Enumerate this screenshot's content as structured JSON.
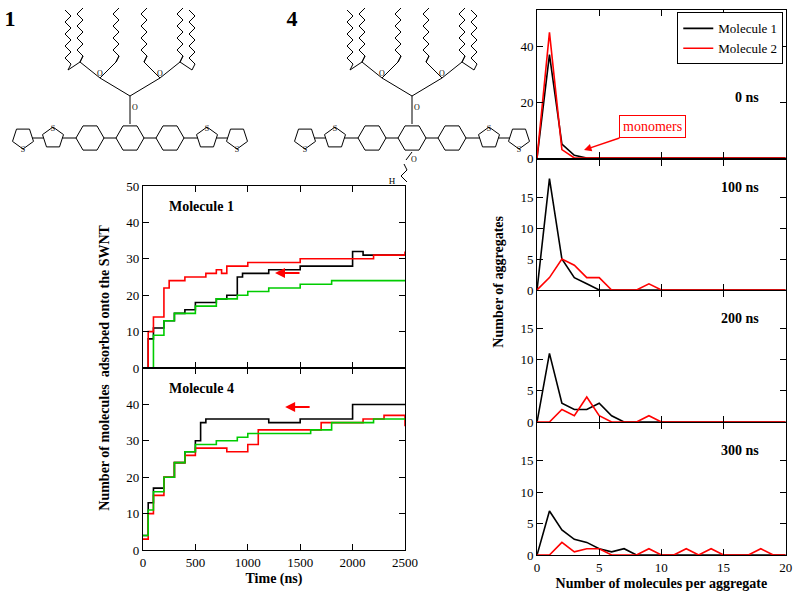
{
  "structures": [
    {
      "label": "1",
      "atoms": [
        "S",
        "O"
      ]
    },
    {
      "label": "4",
      "atoms": [
        "S",
        "O"
      ],
      "end_group": "H"
    }
  ],
  "chart_data": [
    {
      "type": "line",
      "title": "Molecule 1",
      "ylabel": "Number of molecules  adsorbed onto the SWNT",
      "xlim": [
        0,
        2500
      ],
      "xticks": [
        0,
        500,
        1000,
        1500,
        2000,
        2500
      ],
      "ylim": [
        0,
        50
      ],
      "yticks": [
        0,
        10,
        20,
        30,
        40,
        50
      ],
      "tick_labels": "y",
      "line_style": "step",
      "series": [
        {
          "color": "#000000",
          "x": [
            0,
            50,
            100,
            200,
            300,
            400,
            500,
            700,
            800,
            900,
            950,
            1200,
            1500,
            2000,
            2100,
            2500
          ],
          "values": [
            0,
            8,
            11,
            13,
            15,
            16,
            18,
            19,
            20,
            25,
            26,
            27,
            28,
            32,
            31,
            31
          ]
        },
        {
          "color": "#ff0000",
          "x": [
            0,
            50,
            100,
            200,
            250,
            400,
            600,
            700,
            750,
            800,
            1000,
            1500,
            2200,
            2500
          ],
          "values": [
            0,
            10,
            14,
            22,
            24,
            25,
            26,
            27,
            26,
            28,
            29,
            30,
            31,
            32
          ]
        },
        {
          "color": "#00cc00",
          "x": [
            0,
            100,
            200,
            300,
            500,
            700,
            900,
            1000,
            1200,
            1500,
            1800,
            2500
          ],
          "values": [
            0,
            9,
            13,
            15,
            17,
            19,
            20,
            21,
            22,
            23,
            24,
            24
          ]
        }
      ]
    },
    {
      "type": "line",
      "title": "Molecule 4",
      "xlabel": "Time (ns)",
      "xlim": [
        0,
        2500
      ],
      "xticks": [
        0,
        500,
        1000,
        1500,
        2000,
        2500
      ],
      "ylim": [
        0,
        50
      ],
      "yticks": [
        0,
        10,
        20,
        30,
        40
      ],
      "line_style": "step",
      "series": [
        {
          "color": "#000000",
          "x": [
            0,
            50,
            100,
            200,
            300,
            400,
            500,
            550,
            600,
            1200,
            1500,
            2000,
            2500
          ],
          "values": [
            4,
            13,
            17,
            20,
            24,
            27,
            30,
            35,
            36,
            35,
            36,
            40,
            40
          ]
        },
        {
          "color": "#ff0000",
          "x": [
            0,
            50,
            100,
            200,
            300,
            400,
            500,
            800,
            1000,
            1100,
            1700,
            2100,
            2300,
            2500
          ],
          "values": [
            3,
            10,
            15,
            20,
            24,
            26,
            28,
            27,
            29,
            33,
            35,
            36,
            37,
            34
          ]
        },
        {
          "color": "#00cc00",
          "x": [
            0,
            50,
            100,
            200,
            300,
            400,
            500,
            700,
            900,
            1000,
            1600,
            1800,
            2200,
            2500
          ],
          "values": [
            4,
            11,
            16,
            20,
            24,
            27,
            29,
            30,
            31,
            32,
            33,
            35,
            36,
            36
          ]
        }
      ]
    },
    {
      "type": "line",
      "title": "0 ns",
      "ylabel": "Number of aggregates",
      "annotations": [
        {
          "text": "monomers"
        }
      ],
      "legend": "upper right",
      "tick_labels": "y",
      "xlim": [
        0,
        20
      ],
      "xticks": [
        0,
        5,
        10,
        15,
        20
      ],
      "ylim": [
        0,
        53
      ],
      "yticks": [
        0,
        20,
        40
      ],
      "x": [
        0,
        1,
        2,
        3,
        4,
        5,
        6,
        7,
        8,
        9,
        10,
        11,
        12,
        13,
        14,
        15,
        16,
        17,
        18,
        19,
        20
      ],
      "series": [
        {
          "name": "Molecule 1",
          "color": "#000000",
          "values": [
            0,
            37,
            5,
            1,
            0,
            0,
            0,
            0,
            0,
            0,
            0,
            0,
            0,
            0,
            0,
            0,
            0,
            0,
            0,
            0,
            0
          ]
        },
        {
          "name": "Molecule 2",
          "color": "#ff0000",
          "values": [
            0,
            45,
            3,
            0,
            0,
            0,
            0,
            0,
            0,
            0,
            0,
            0,
            0,
            0,
            0,
            0,
            0,
            0,
            0,
            0,
            0
          ]
        }
      ]
    },
    {
      "type": "line",
      "title": "100 ns",
      "tick_labels": "y",
      "xlim": [
        0,
        20
      ],
      "xticks": [
        0,
        5,
        10,
        15,
        20
      ],
      "ylim": [
        0,
        21
      ],
      "yticks": [
        0,
        5,
        10,
        15
      ],
      "x": [
        0,
        1,
        2,
        3,
        4,
        5,
        6,
        7,
        8,
        9,
        10,
        11,
        12,
        13,
        14,
        15,
        16,
        17,
        18,
        19,
        20
      ],
      "series": [
        {
          "name": "Molecule 1",
          "color": "#000000",
          "values": [
            0,
            18,
            5,
            2,
            1,
            0,
            0,
            0,
            0,
            0,
            0,
            0,
            0,
            0,
            0,
            0,
            0,
            0,
            0,
            0,
            0
          ]
        },
        {
          "name": "Molecule 2",
          "color": "#ff0000",
          "values": [
            0,
            2,
            5,
            4,
            2,
            2,
            0,
            0,
            0,
            1,
            0,
            0,
            0,
            0,
            0,
            0,
            0,
            0,
            0,
            0,
            0
          ]
        }
      ]
    },
    {
      "type": "line",
      "title": "200 ns",
      "tick_labels": "y",
      "xlim": [
        0,
        20
      ],
      "xticks": [
        0,
        5,
        10,
        15,
        20
      ],
      "ylim": [
        0,
        21
      ],
      "yticks": [
        0,
        5,
        10,
        15
      ],
      "x": [
        0,
        1,
        2,
        3,
        4,
        5,
        6,
        7,
        8,
        9,
        10,
        11,
        12,
        13,
        14,
        15,
        16,
        17,
        18,
        19,
        20
      ],
      "series": [
        {
          "name": "Molecule 1",
          "color": "#000000",
          "values": [
            0,
            11,
            3,
            2,
            2,
            3,
            1,
            0,
            0,
            0,
            0,
            0,
            0,
            0,
            0,
            0,
            0,
            0,
            0,
            0,
            0
          ]
        },
        {
          "name": "Molecule 2",
          "color": "#ff0000",
          "values": [
            0,
            0,
            2,
            1,
            4,
            1,
            0,
            0,
            0,
            1,
            0,
            0,
            0,
            0,
            0,
            0,
            0,
            0,
            0,
            0,
            0
          ]
        }
      ]
    },
    {
      "type": "line",
      "title": "300 ns",
      "xlabel": "Number of molecules per aggregate",
      "xlim": [
        0,
        20
      ],
      "xticks": [
        0,
        5,
        10,
        15,
        20
      ],
      "ylim": [
        0,
        21
      ],
      "yticks": [
        0,
        5,
        10,
        15
      ],
      "x": [
        0,
        1,
        2,
        3,
        4,
        5,
        6,
        7,
        8,
        9,
        10,
        11,
        12,
        13,
        14,
        15,
        16,
        17,
        18,
        19,
        20
      ],
      "series": [
        {
          "name": "Molecule 1",
          "color": "#000000",
          "values": [
            0,
            7,
            4,
            2.5,
            2,
            1,
            0.5,
            1,
            0,
            0,
            0,
            0,
            0,
            0,
            0,
            0,
            0,
            0,
            0,
            0,
            0
          ]
        },
        {
          "name": "Molecule 2",
          "color": "#ff0000",
          "values": [
            0,
            0,
            2,
            0.5,
            1,
            1,
            0,
            0,
            0,
            1,
            0,
            0,
            1,
            0,
            1,
            0,
            0,
            0,
            1,
            0,
            0
          ]
        }
      ]
    }
  ]
}
